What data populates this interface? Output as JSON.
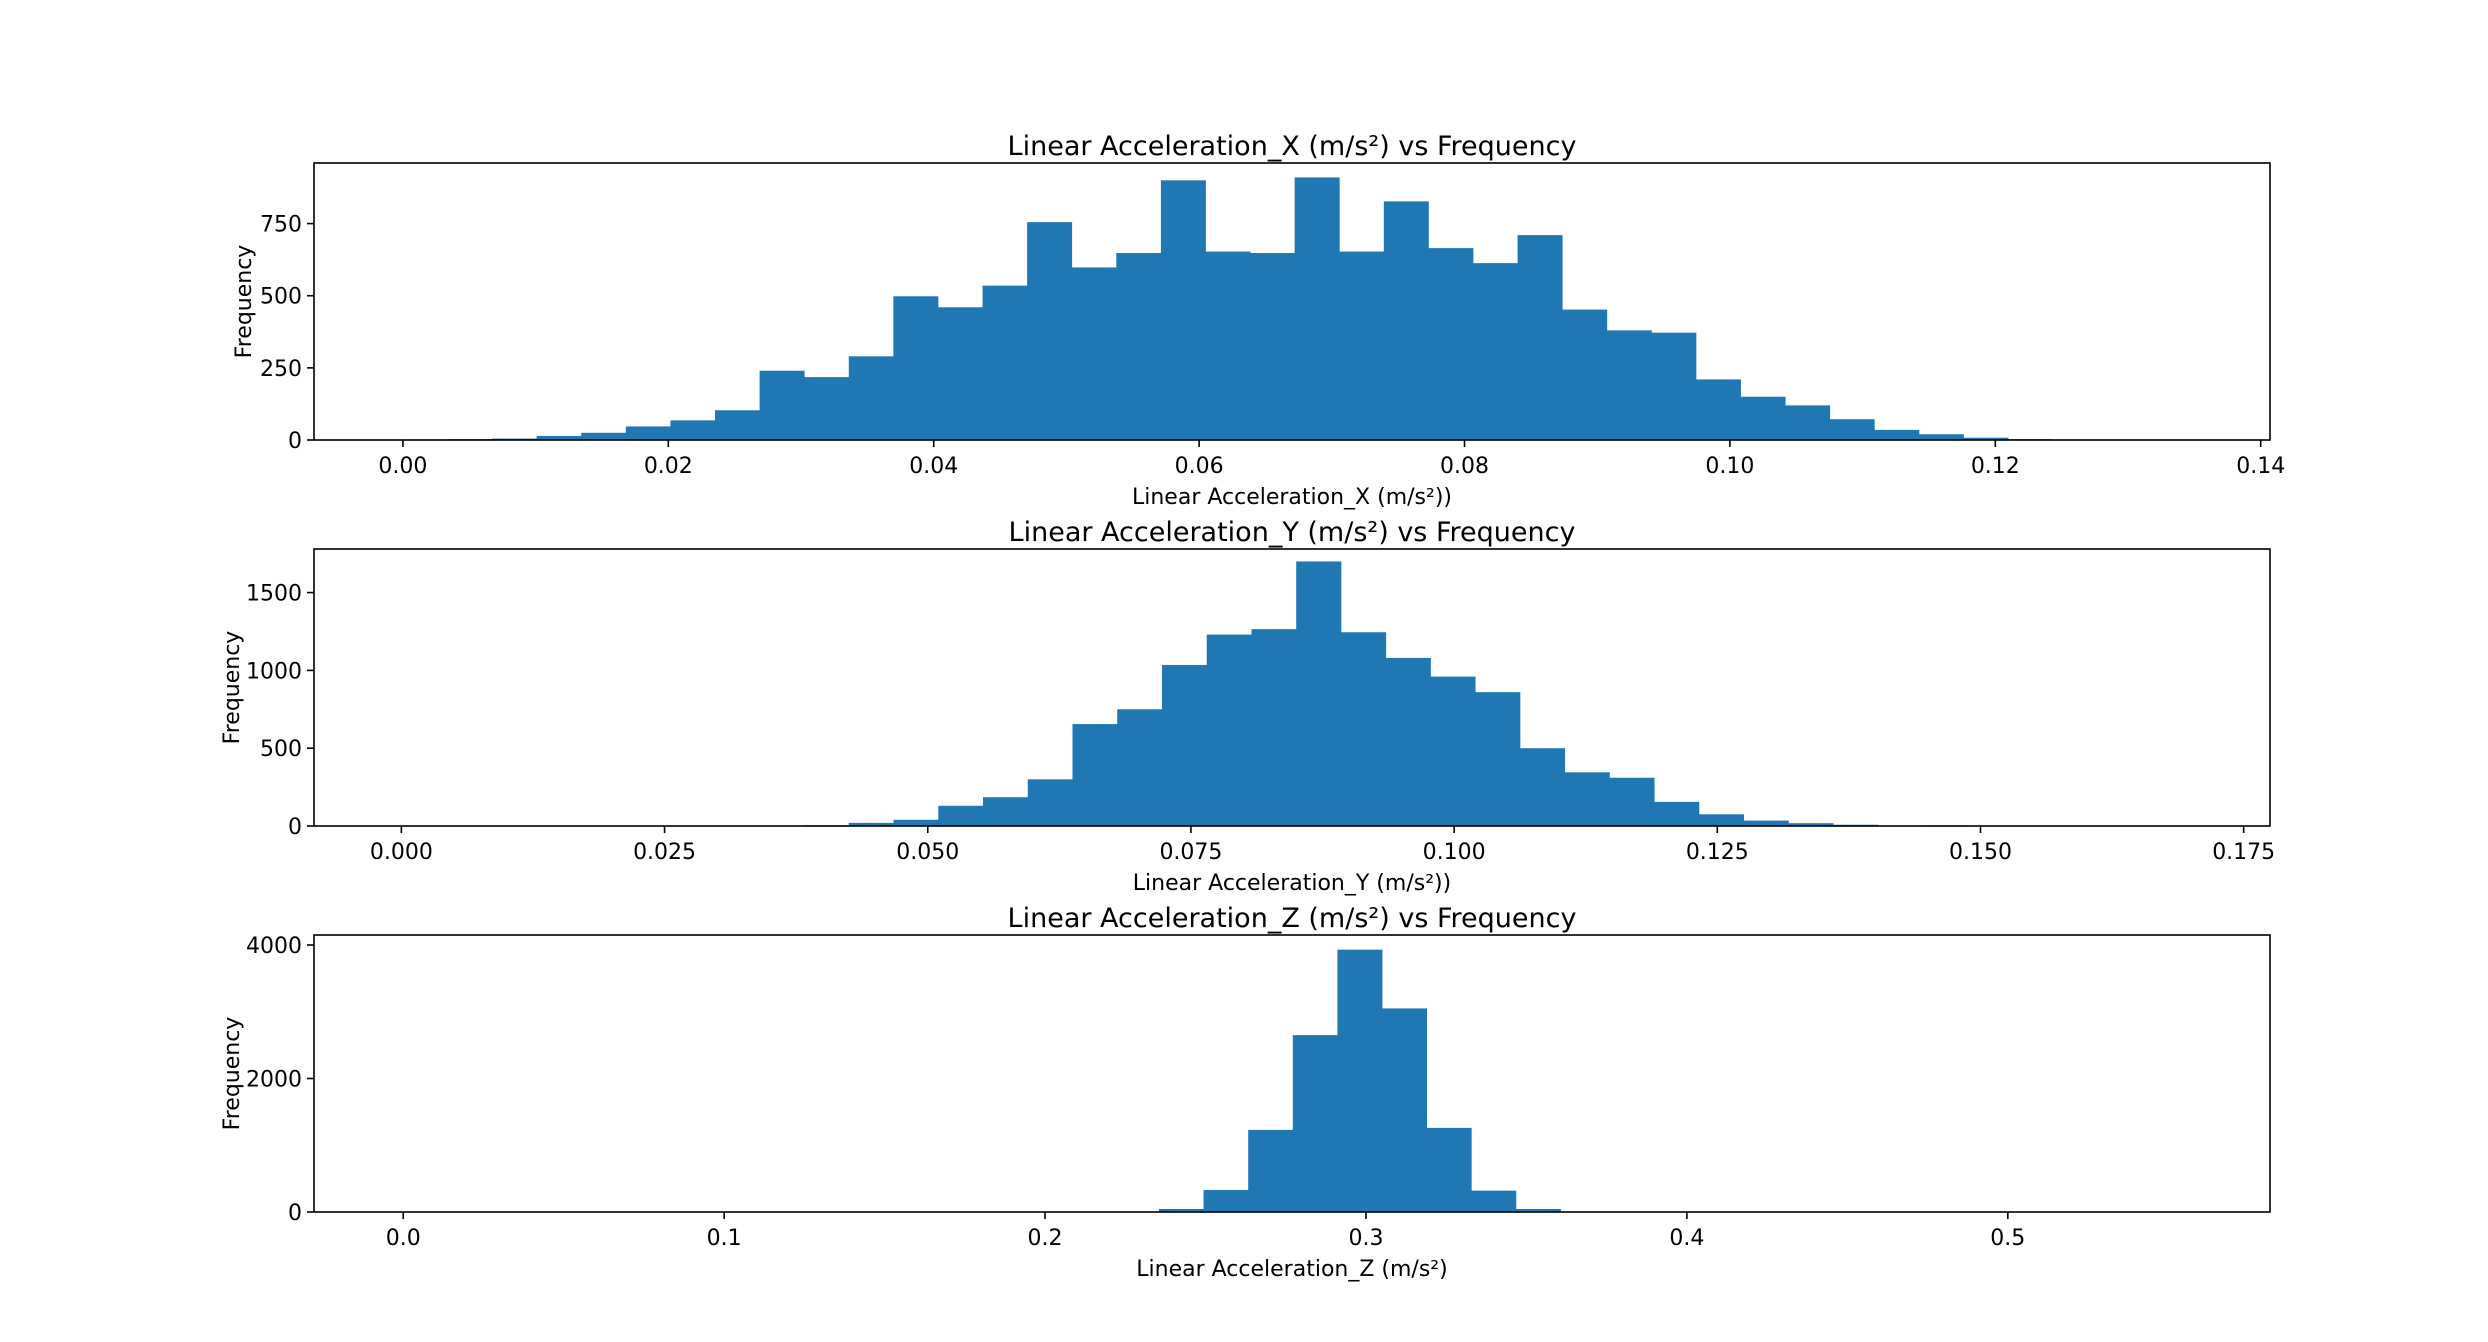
{
  "colors": {
    "bar": "#1f77b4",
    "axis": "#000000",
    "background": "#ffffff"
  },
  "chart_data": [
    {
      "type": "histogram",
      "title": "Linear Acceleration_X (m/s²) vs Frequency",
      "xlabel": "Linear Acceleration_X (m/s²))",
      "ylabel": "Frequency",
      "xlim": [
        -0.0067,
        0.1407
      ],
      "ylim": [
        0,
        960
      ],
      "xticks": [
        0.0,
        0.02,
        0.04,
        0.06,
        0.08,
        0.1,
        0.12,
        0.14
      ],
      "xtick_labels": [
        "0.00",
        "0.02",
        "0.04",
        "0.06",
        "0.08",
        "0.10",
        "0.12",
        "0.14"
      ],
      "yticks": [
        0,
        250,
        500,
        750
      ],
      "ytick_labels": [
        "0",
        "250",
        "500",
        "750"
      ],
      "bin_edges": [
        0.0,
        0.00336,
        0.00672,
        0.01008,
        0.01344,
        0.0168,
        0.02016,
        0.02352,
        0.02688,
        0.03024,
        0.0336,
        0.03696,
        0.04032,
        0.04368,
        0.04704,
        0.0504,
        0.05376,
        0.05712,
        0.06048,
        0.06384,
        0.0672,
        0.07056,
        0.07392,
        0.07728,
        0.08064,
        0.084,
        0.08736,
        0.09072,
        0.09408,
        0.09744,
        0.1008,
        0.10416,
        0.10752,
        0.11088,
        0.11424,
        0.1176,
        0.12096,
        0.12432,
        0.12768,
        0.13104
      ],
      "counts": [
        2,
        3,
        5,
        14,
        25,
        47,
        68,
        103,
        240,
        218,
        290,
        498,
        460,
        535,
        755,
        598,
        648,
        900,
        653,
        648,
        910,
        653,
        827,
        665,
        613,
        710,
        452,
        380,
        372,
        210,
        150,
        120,
        72,
        35,
        20,
        8,
        3,
        1,
        1
      ]
    },
    {
      "type": "histogram",
      "title": "Linear Acceleration_Y (m/s²) vs Frequency",
      "xlabel": "Linear Acceleration_Y (m/s²))",
      "ylabel": "Frequency",
      "xlim": [
        -0.0083,
        0.1775
      ],
      "ylim": [
        0,
        1780
      ],
      "xticks": [
        0.0,
        0.025,
        0.05,
        0.075,
        0.1,
        0.125,
        0.15,
        0.175
      ],
      "xtick_labels": [
        "0.000",
        "0.025",
        "0.050",
        "0.075",
        "0.100",
        "0.125",
        "0.150",
        "0.175"
      ],
      "yticks": [
        0,
        500,
        1000,
        1500
      ],
      "ytick_labels": [
        "0",
        "500",
        "1000",
        "1500"
      ],
      "bin_edges": [
        0.0,
        0.00425,
        0.0085,
        0.01275,
        0.017,
        0.02125,
        0.0255,
        0.02975,
        0.034,
        0.03825,
        0.0425,
        0.04675,
        0.051,
        0.05525,
        0.0595,
        0.06375,
        0.068,
        0.07225,
        0.0765,
        0.08075,
        0.085,
        0.08925,
        0.0935,
        0.09775,
        0.102,
        0.10625,
        0.1105,
        0.11475,
        0.119,
        0.12325,
        0.1275,
        0.13175,
        0.136,
        0.14025,
        0.1445,
        0.14875
      ],
      "counts": [
        0,
        0,
        0,
        0,
        3,
        0,
        0,
        0,
        2,
        5,
        20,
        40,
        130,
        185,
        300,
        655,
        750,
        1035,
        1230,
        1265,
        1700,
        1245,
        1080,
        960,
        860,
        500,
        345,
        310,
        155,
        75,
        35,
        18,
        8,
        3,
        1
      ]
    },
    {
      "type": "histogram",
      "title": "Linear Acceleration_Z (m/s²) vs Frequency",
      "xlabel": "Linear Acceleration_Z (m/s²)",
      "ylabel": "Frequency",
      "xlim": [
        -0.0278,
        0.5817
      ],
      "ylim": [
        0,
        4150
      ],
      "xticks": [
        0.0,
        0.1,
        0.2,
        0.3,
        0.4,
        0.5
      ],
      "xtick_labels": [
        "0.0",
        "0.1",
        "0.2",
        "0.3",
        "0.4",
        "0.5"
      ],
      "yticks": [
        0,
        2000,
        4000
      ],
      "ytick_labels": [
        "0",
        "2000",
        "4000"
      ],
      "bin_edges": [
        0.2355,
        0.2494,
        0.2633,
        0.2772,
        0.2911,
        0.305,
        0.3189,
        0.3328,
        0.3467,
        0.3606
      ],
      "counts": [
        45,
        330,
        1230,
        2650,
        3930,
        3050,
        1260,
        320,
        45
      ]
    }
  ]
}
